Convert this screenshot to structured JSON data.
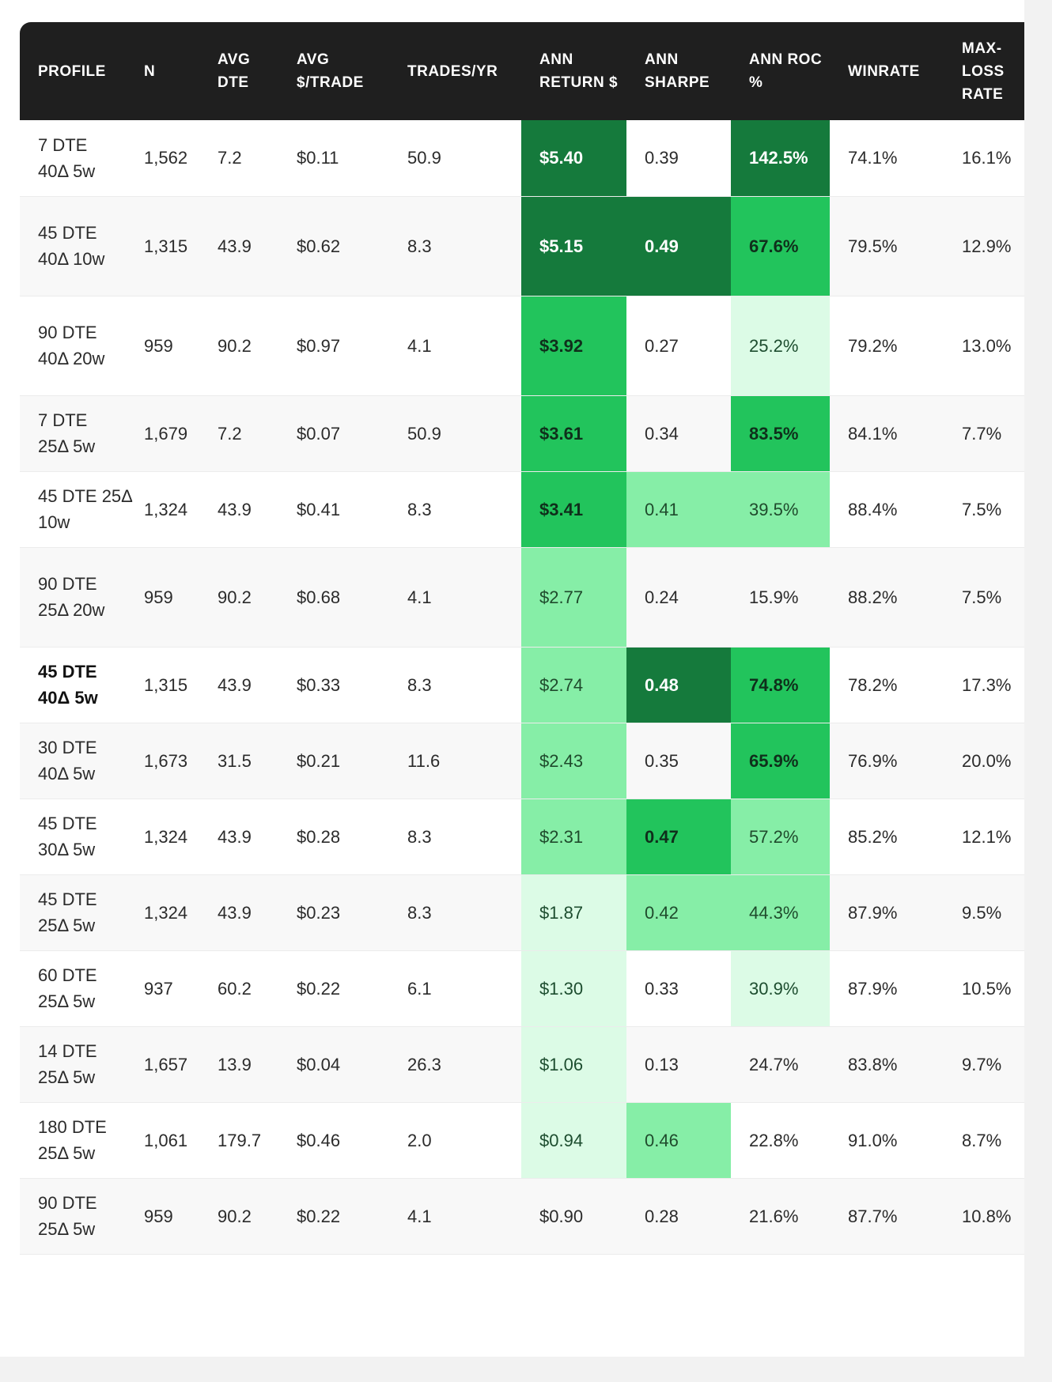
{
  "columns": [
    "PROFILE",
    "N",
    "AVG DTE",
    "AVG $/TRADE",
    "TRADES/YR",
    "ANN RETURN $",
    "ANN SHARPE",
    "ANN ROC %",
    "WINRATE",
    "MAX-LOSS RATE"
  ],
  "colors": {
    "header_bg": "#1f1f1f",
    "dark": "#157a3c",
    "mid": "#22c45c",
    "light": "#86eea7",
    "pale": "#dcfbe6"
  },
  "rows": [
    {
      "profile": "7 DTE 40Δ 5w",
      "n": "1,562",
      "avg_dte": "7.2",
      "avg_trade": "$0.11",
      "trades_yr": "50.9",
      "ann_return": "$5.40",
      "ann_sharpe": "0.39",
      "ann_roc": "142.5%",
      "winrate": "74.1%",
      "max_loss": "16.1%",
      "shade": {
        "ann_return": "dark",
        "ann_sharpe": "",
        "ann_roc": "dark"
      },
      "bold": false
    },
    {
      "profile": "45 DTE 40Δ 10w",
      "n": "1,315",
      "avg_dte": "43.9",
      "avg_trade": "$0.62",
      "trades_yr": "8.3",
      "ann_return": "$5.15",
      "ann_sharpe": "0.49",
      "ann_roc": "67.6%",
      "winrate": "79.5%",
      "max_loss": "12.9%",
      "shade": {
        "ann_return": "dark",
        "ann_sharpe": "dark",
        "ann_roc": "mid"
      },
      "bold": false
    },
    {
      "profile": "90 DTE 40Δ 20w",
      "n": "959",
      "avg_dte": "90.2",
      "avg_trade": "$0.97",
      "trades_yr": "4.1",
      "ann_return": "$3.92",
      "ann_sharpe": "0.27",
      "ann_roc": "25.2%",
      "winrate": "79.2%",
      "max_loss": "13.0%",
      "shade": {
        "ann_return": "mid",
        "ann_sharpe": "",
        "ann_roc": "pale"
      },
      "bold": false
    },
    {
      "profile": "7 DTE 25Δ 5w",
      "n": "1,679",
      "avg_dte": "7.2",
      "avg_trade": "$0.07",
      "trades_yr": "50.9",
      "ann_return": "$3.61",
      "ann_sharpe": "0.34",
      "ann_roc": "83.5%",
      "winrate": "84.1%",
      "max_loss": "7.7%",
      "shade": {
        "ann_return": "mid",
        "ann_sharpe": "",
        "ann_roc": "mid"
      },
      "bold": false
    },
    {
      "profile": "45 DTE 25Δ 10w",
      "n": "1,324",
      "avg_dte": "43.9",
      "avg_trade": "$0.41",
      "trades_yr": "8.3",
      "ann_return": "$3.41",
      "ann_sharpe": "0.41",
      "ann_roc": "39.5%",
      "winrate": "88.4%",
      "max_loss": "7.5%",
      "shade": {
        "ann_return": "mid",
        "ann_sharpe": "light",
        "ann_roc": "light"
      },
      "bold": false
    },
    {
      "profile": "90 DTE 25Δ 20w",
      "n": "959",
      "avg_dte": "90.2",
      "avg_trade": "$0.68",
      "trades_yr": "4.1",
      "ann_return": "$2.77",
      "ann_sharpe": "0.24",
      "ann_roc": "15.9%",
      "winrate": "88.2%",
      "max_loss": "7.5%",
      "shade": {
        "ann_return": "light",
        "ann_sharpe": "",
        "ann_roc": ""
      },
      "bold": false
    },
    {
      "profile": "45 DTE 40Δ 5w",
      "n": "1,315",
      "avg_dte": "43.9",
      "avg_trade": "$0.33",
      "trades_yr": "8.3",
      "ann_return": "$2.74",
      "ann_sharpe": "0.48",
      "ann_roc": "74.8%",
      "winrate": "78.2%",
      "max_loss": "17.3%",
      "shade": {
        "ann_return": "light",
        "ann_sharpe": "dark",
        "ann_roc": "mid"
      },
      "bold": true
    },
    {
      "profile": "30 DTE 40Δ 5w",
      "n": "1,673",
      "avg_dte": "31.5",
      "avg_trade": "$0.21",
      "trades_yr": "11.6",
      "ann_return": "$2.43",
      "ann_sharpe": "0.35",
      "ann_roc": "65.9%",
      "winrate": "76.9%",
      "max_loss": "20.0%",
      "shade": {
        "ann_return": "light",
        "ann_sharpe": "",
        "ann_roc": "mid"
      },
      "bold": false
    },
    {
      "profile": "45 DTE 30Δ 5w",
      "n": "1,324",
      "avg_dte": "43.9",
      "avg_trade": "$0.28",
      "trades_yr": "8.3",
      "ann_return": "$2.31",
      "ann_sharpe": "0.47",
      "ann_roc": "57.2%",
      "winrate": "85.2%",
      "max_loss": "12.1%",
      "shade": {
        "ann_return": "light",
        "ann_sharpe": "mid",
        "ann_roc": "light"
      },
      "bold": false
    },
    {
      "profile": "45 DTE 25Δ 5w",
      "n": "1,324",
      "avg_dte": "43.9",
      "avg_trade": "$0.23",
      "trades_yr": "8.3",
      "ann_return": "$1.87",
      "ann_sharpe": "0.42",
      "ann_roc": "44.3%",
      "winrate": "87.9%",
      "max_loss": "9.5%",
      "shade": {
        "ann_return": "pale",
        "ann_sharpe": "light",
        "ann_roc": "light"
      },
      "bold": false
    },
    {
      "profile": "60 DTE 25Δ 5w",
      "n": "937",
      "avg_dte": "60.2",
      "avg_trade": "$0.22",
      "trades_yr": "6.1",
      "ann_return": "$1.30",
      "ann_sharpe": "0.33",
      "ann_roc": "30.9%",
      "winrate": "87.9%",
      "max_loss": "10.5%",
      "shade": {
        "ann_return": "pale",
        "ann_sharpe": "",
        "ann_roc": "pale"
      },
      "bold": false
    },
    {
      "profile": "14 DTE 25Δ 5w",
      "n": "1,657",
      "avg_dte": "13.9",
      "avg_trade": "$0.04",
      "trades_yr": "26.3",
      "ann_return": "$1.06",
      "ann_sharpe": "0.13",
      "ann_roc": "24.7%",
      "winrate": "83.8%",
      "max_loss": "9.7%",
      "shade": {
        "ann_return": "pale",
        "ann_sharpe": "",
        "ann_roc": ""
      },
      "bold": false
    },
    {
      "profile": "180 DTE 25Δ 5w",
      "n": "1,061",
      "avg_dte": "179.7",
      "avg_trade": "$0.46",
      "trades_yr": "2.0",
      "ann_return": "$0.94",
      "ann_sharpe": "0.46",
      "ann_roc": "22.8%",
      "winrate": "91.0%",
      "max_loss": "8.7%",
      "shade": {
        "ann_return": "pale",
        "ann_sharpe": "light",
        "ann_roc": ""
      },
      "bold": false
    },
    {
      "profile": "90 DTE 25Δ 5w",
      "n": "959",
      "avg_dte": "90.2",
      "avg_trade": "$0.22",
      "trades_yr": "4.1",
      "ann_return": "$0.90",
      "ann_sharpe": "0.28",
      "ann_roc": "21.6%",
      "winrate": "87.7%",
      "max_loss": "10.8%",
      "shade": {
        "ann_return": "",
        "ann_sharpe": "",
        "ann_roc": ""
      },
      "bold": false
    }
  ]
}
